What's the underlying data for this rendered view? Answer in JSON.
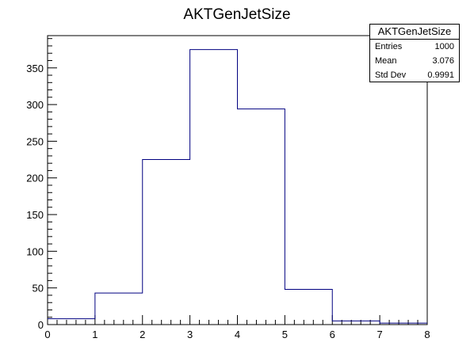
{
  "chart_data": {
    "type": "bar",
    "style": "step-histogram",
    "title": "AKTGenJetSize",
    "bin_edges": [
      0,
      1,
      2,
      3,
      4,
      5,
      6,
      7,
      8
    ],
    "values": [
      8,
      43,
      225,
      375,
      294,
      48,
      5,
      2
    ],
    "xlim": [
      0,
      8
    ],
    "ylim": [
      0,
      394
    ],
    "x_ticks": [
      "0",
      "1",
      "2",
      "3",
      "4",
      "5",
      "6",
      "7",
      "8"
    ],
    "y_ticks": [
      "0",
      "50",
      "100",
      "150",
      "200",
      "250",
      "300",
      "350"
    ],
    "line_color": "#000080",
    "grid": false,
    "stats": {
      "name": "AKTGenJetSize",
      "rows": [
        {
          "label": "Entries",
          "value": "1000"
        },
        {
          "label": "Mean",
          "value": "3.076"
        },
        {
          "label": "Std Dev",
          "value": "0.9991"
        }
      ]
    }
  }
}
